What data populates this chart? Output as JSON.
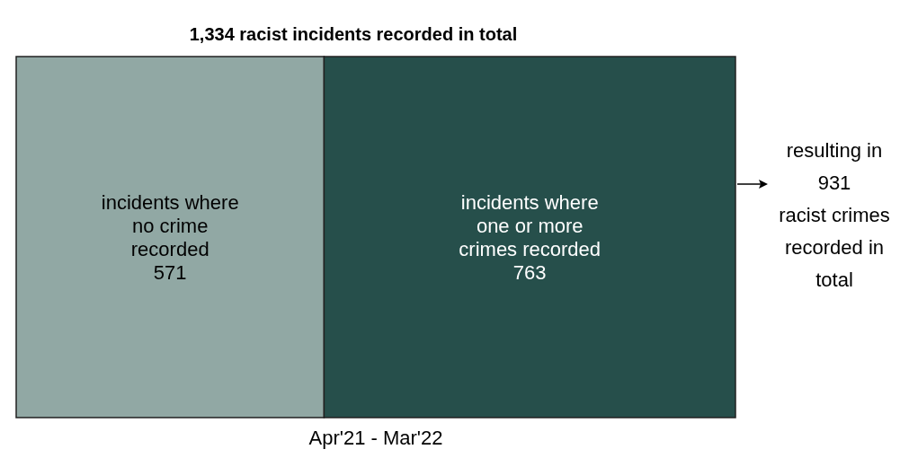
{
  "chart_data": {
    "type": "other",
    "title": "1,334 racist incidents recorded in total",
    "data_labels": true,
    "categories": [
      "incidents where\nno crime\nrecorded",
      "incidents where\none or more\ncrimes recorded"
    ],
    "values": [
      571,
      763
    ],
    "colors": [
      "#91a8a4",
      "#264f4b"
    ],
    "annotations": [
      "Apr'21 - Mar'22",
      "resulting in\n931\nracist crimes\nrecorded in\ntotal"
    ]
  }
}
